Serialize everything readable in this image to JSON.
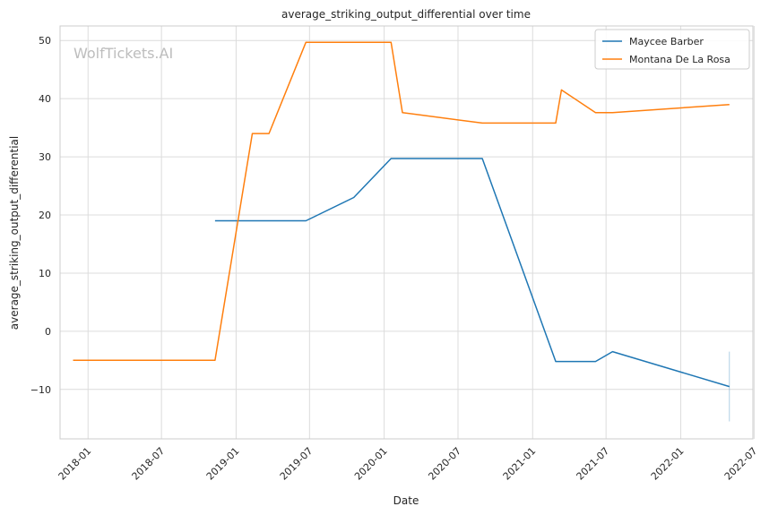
{
  "chart_data": {
    "type": "line",
    "title": "average_striking_output_differential over time",
    "xlabel": "Date",
    "ylabel": "average_striking_output_differential",
    "watermark": "WolfTickets.AI",
    "grid": true,
    "legend_position": "top-right",
    "xlim": [
      "2017-10-24",
      "2022-06-28"
    ],
    "ylim": [
      -18.5,
      52.5
    ],
    "x_ticks": [
      "2018-01",
      "2018-07",
      "2019-01",
      "2019-07",
      "2020-01",
      "2020-07",
      "2021-01",
      "2021-07",
      "2022-01",
      "2022-07"
    ],
    "y_ticks": [
      -10,
      0,
      10,
      20,
      30,
      40,
      50
    ],
    "series": [
      {
        "name": "Maycee Barber",
        "color": "#1f77b4",
        "points": [
          {
            "x": "2018-11-10",
            "y": 19.0
          },
          {
            "x": "2019-06-22",
            "y": 19.0
          },
          {
            "x": "2019-10-18",
            "y": 23.0
          },
          {
            "x": "2020-01-18",
            "y": 29.7
          },
          {
            "x": "2020-08-30",
            "y": 29.7
          },
          {
            "x": "2021-02-27",
            "y": -5.2
          },
          {
            "x": "2021-06-05",
            "y": -5.2
          },
          {
            "x": "2021-07-17",
            "y": -3.5
          },
          {
            "x": "2022-05-01",
            "y": -9.5
          }
        ],
        "error_bar": {
          "x": "2022-05-01",
          "low": -15.5,
          "high": -3.5
        }
      },
      {
        "name": "Montana De La Rosa",
        "color": "#ff7f0e",
        "points": [
          {
            "x": "2017-11-25",
            "y": -5.0
          },
          {
            "x": "2018-11-10",
            "y": -5.0
          },
          {
            "x": "2019-02-10",
            "y": 34.0
          },
          {
            "x": "2019-03-23",
            "y": 34.0
          },
          {
            "x": "2019-06-22",
            "y": 49.7
          },
          {
            "x": "2020-01-18",
            "y": 49.7
          },
          {
            "x": "2020-02-15",
            "y": 37.6
          },
          {
            "x": "2020-08-30",
            "y": 35.8
          },
          {
            "x": "2021-02-27",
            "y": 35.8
          },
          {
            "x": "2021-03-13",
            "y": 41.5
          },
          {
            "x": "2021-06-05",
            "y": 37.6
          },
          {
            "x": "2021-07-17",
            "y": 37.6
          },
          {
            "x": "2022-05-01",
            "y": 39.0
          }
        ]
      }
    ]
  }
}
